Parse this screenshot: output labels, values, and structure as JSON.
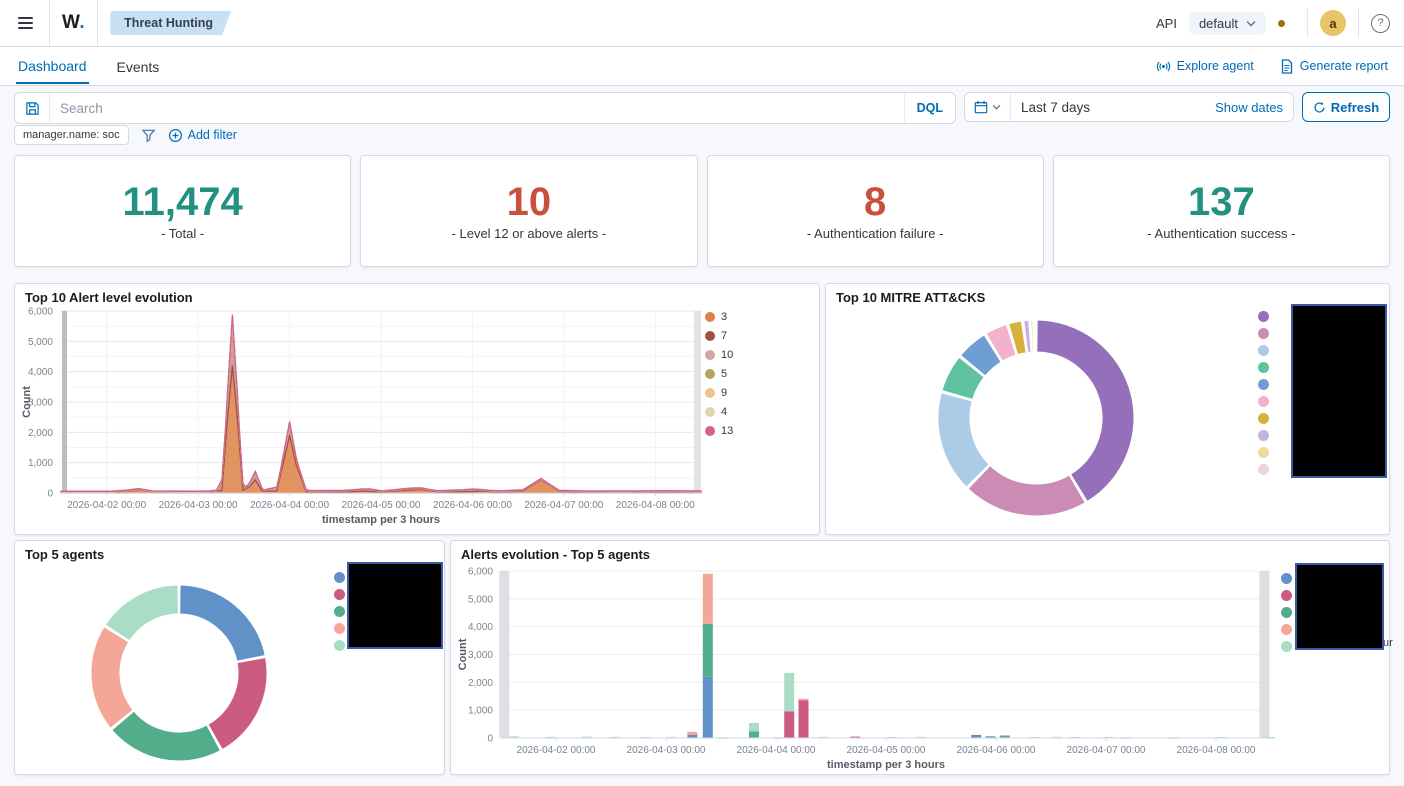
{
  "topbar": {
    "logo": "W",
    "logo_dot": ".",
    "breadcrumb": "Threat Hunting",
    "api_label": "API",
    "api_selected": "default",
    "avatar_initial": "a",
    "help": "?"
  },
  "tabs": {
    "items": [
      {
        "label": "Dashboard",
        "active": true
      },
      {
        "label": "Events",
        "active": false
      }
    ],
    "actions": [
      {
        "label": "Explore agent"
      },
      {
        "label": "Generate report"
      }
    ]
  },
  "search": {
    "placeholder": "Search",
    "language": "DQL",
    "time_range": "Last 7 days",
    "show_dates_label": "Show dates",
    "refresh_label": "Refresh"
  },
  "filter_bar": {
    "pill": "manager.name: soc",
    "add_filter_label": "Add filter"
  },
  "stats": [
    {
      "value": "11,474",
      "label": "- Total -",
      "color": "#239182"
    },
    {
      "value": "10",
      "label": "- Level 12 or above alerts -",
      "color": "#c8503c"
    },
    {
      "value": "8",
      "label": "- Authentication failure -",
      "color": "#c8503c"
    },
    {
      "value": "137",
      "label": "- Authentication success -",
      "color": "#239182"
    }
  ],
  "chart_data": [
    {
      "type": "area",
      "title": "Top 10 Alert level evolution",
      "xlabel": "timestamp per 3 hours",
      "ylabel": "Count",
      "ylim": [
        0,
        6000
      ],
      "y_ticks": [
        "0",
        "1,000",
        "2,000",
        "3,000",
        "4,000",
        "5,000",
        "6,000"
      ],
      "x_range_days": [
        0,
        7
      ],
      "x_ticks": [
        {
          "t": 0.5,
          "label": "2026-04-02 00:00"
        },
        {
          "t": 1.5,
          "label": "2026-04-03 00:00"
        },
        {
          "t": 2.5,
          "label": "2026-04-04 00:00"
        },
        {
          "t": 3.5,
          "label": "2026-04-05 00:00"
        },
        {
          "t": 4.5,
          "label": "2026-04-06 00:00"
        },
        {
          "t": 5.5,
          "label": "2026-04-07 00:00"
        },
        {
          "t": 6.5,
          "label": "2026-04-08 00:00"
        }
      ],
      "legend": [
        {
          "label": "3",
          "color": "#dd8047"
        },
        {
          "label": "7",
          "color": "#a24f42"
        },
        {
          "label": "10",
          "color": "#d2a5a2"
        },
        {
          "label": "5",
          "color": "#b3a369"
        },
        {
          "label": "9",
          "color": "#eec48c"
        },
        {
          "label": "4",
          "color": "#ded5b6"
        },
        {
          "label": "13",
          "color": "#d4618c"
        }
      ],
      "series": [
        {
          "name": "3",
          "color": "#dd8047",
          "opacity": 0.85,
          "points": [
            [
              0,
              25
            ],
            [
              0.55,
              25
            ],
            [
              0.72,
              60
            ],
            [
              0.85,
              110
            ],
            [
              1.0,
              35
            ],
            [
              1.45,
              25
            ],
            [
              1.62,
              30
            ],
            [
              1.76,
              80
            ],
            [
              1.82,
              2400
            ],
            [
              1.875,
              4200
            ],
            [
              1.93,
              2400
            ],
            [
              1.99,
              90
            ],
            [
              2.06,
              200
            ],
            [
              2.125,
              430
            ],
            [
              2.2,
              60
            ],
            [
              2.36,
              60
            ],
            [
              2.44,
              1100
            ],
            [
              2.5,
              1900
            ],
            [
              2.57,
              950
            ],
            [
              2.68,
              40
            ],
            [
              3.1,
              30
            ],
            [
              3.3,
              60
            ],
            [
              3.5,
              30
            ],
            [
              3.78,
              90
            ],
            [
              3.95,
              120
            ],
            [
              4.12,
              30
            ],
            [
              4.4,
              40
            ],
            [
              4.62,
              60
            ],
            [
              4.82,
              30
            ],
            [
              5.05,
              60
            ],
            [
              5.25,
              430
            ],
            [
              5.45,
              50
            ],
            [
              5.72,
              30
            ],
            [
              6.2,
              30
            ],
            [
              6.6,
              40
            ],
            [
              7,
              30
            ]
          ]
        },
        {
          "name": "7",
          "color": "#a24f42",
          "opacity": 0.55,
          "points": [
            [
              0,
              12
            ],
            [
              1.7,
              12
            ],
            [
              1.8,
              550
            ],
            [
              1.875,
              1650
            ],
            [
              1.95,
              480
            ],
            [
              2.02,
              30
            ],
            [
              2.07,
              120
            ],
            [
              2.125,
              260
            ],
            [
              2.22,
              20
            ],
            [
              2.4,
              140
            ],
            [
              2.5,
              430
            ],
            [
              2.6,
              140
            ],
            [
              2.72,
              15
            ],
            [
              3.2,
              40
            ],
            [
              3.38,
              60
            ],
            [
              3.52,
              15
            ],
            [
              3.85,
              40
            ],
            [
              4.02,
              15
            ],
            [
              4.5,
              55
            ],
            [
              4.68,
              15
            ],
            [
              5.22,
              25
            ],
            [
              5.35,
              15
            ],
            [
              7,
              12
            ]
          ]
        },
        {
          "name": "10",
          "color": "#d2a5a2",
          "opacity": 0.8,
          "points": [
            [
              0,
              4
            ],
            [
              7,
              4
            ]
          ]
        },
        {
          "name": "5",
          "color": "#b3a369",
          "opacity": 0.8,
          "points": [
            [
              0,
              3
            ],
            [
              7,
              3
            ]
          ]
        },
        {
          "name": "9",
          "color": "#eec48c",
          "opacity": 0.8,
          "points": [
            [
              0,
              3
            ],
            [
              7,
              3
            ]
          ]
        },
        {
          "name": "4",
          "color": "#ded5b6",
          "opacity": 0.8,
          "points": [
            [
              0,
              3
            ],
            [
              7,
              3
            ]
          ]
        },
        {
          "name": "13",
          "color": "#d4618c",
          "opacity": 0.9,
          "points": [
            [
              0,
              14
            ],
            [
              7,
              14
            ]
          ]
        }
      ]
    },
    {
      "type": "donut",
      "title": "Top 10 MITRE ATT&CKS",
      "values": [
        41.5,
        21,
        17,
        6.5,
        5.5,
        4,
        2.5,
        1.2,
        0.6,
        0.4
      ],
      "colors": [
        "#9470bb",
        "#ca8cb5",
        "#abcbe6",
        "#5ec39e",
        "#6f9fd2",
        "#f2b2cc",
        "#d4b23c",
        "#c5b2e2",
        "#e9dc9c",
        "#eed2df"
      ],
      "legend_redacted": true
    },
    {
      "type": "donut",
      "title": "Top 5 agents",
      "values": [
        22,
        20,
        22,
        20,
        16
      ],
      "colors": [
        "#6092c8",
        "#cb5b80",
        "#52ad8b",
        "#f4a797",
        "#abdcc6"
      ],
      "legend_redacted": true
    },
    {
      "type": "stacked_bar",
      "title": "Alerts evolution - Top 5 agents",
      "xlabel": "timestamp per 3 hours",
      "ylabel": "Count",
      "ylim": [
        0,
        6000
      ],
      "y_ticks": [
        "0",
        "1,000",
        "2,000",
        "3,000",
        "4,000",
        "5,000",
        "6,000"
      ],
      "x_range_days": [
        0,
        7
      ],
      "x_ticks": [
        {
          "t": 0.5,
          "label": "2026-04-02 00:00"
        },
        {
          "t": 1.5,
          "label": "2026-04-03 00:00"
        },
        {
          "t": 2.5,
          "label": "2026-04-04 00:00"
        },
        {
          "t": 3.5,
          "label": "2026-04-05 00:00"
        },
        {
          "t": 4.5,
          "label": "2026-04-06 00:00"
        },
        {
          "t": 5.5,
          "label": "2026-04-07 00:00"
        },
        {
          "t": 6.5,
          "label": "2026-04-08 00:00"
        }
      ],
      "series_colors": {
        "b": "#6092c8",
        "c": "#cb5b80",
        "g": "#52ad8b",
        "s": "#f4a797",
        "m": "#abdcc6",
        "x": "#dcdfe3"
      },
      "legend_colors": [
        "#6092c8",
        "#cb5b80",
        "#52ad8b",
        "#f4a797",
        "#abdcc6"
      ],
      "legend_redacted": true,
      "legend_overflow_text": "ur",
      "bars": [
        {
          "t": 0.03,
          "parts": [
            [
              "x",
              6000
            ]
          ]
        },
        {
          "t": 0.12,
          "parts": [
            [
              "m",
              60
            ]
          ]
        },
        {
          "t": 0.45,
          "parts": [
            [
              "m",
              40
            ]
          ]
        },
        {
          "t": 0.78,
          "parts": [
            [
              "m",
              50
            ]
          ]
        },
        {
          "t": 1.03,
          "parts": [
            [
              "m",
              40
            ]
          ]
        },
        {
          "t": 1.32,
          "parts": [
            [
              "m",
              35
            ]
          ]
        },
        {
          "t": 1.55,
          "parts": [
            [
              "m",
              40
            ]
          ]
        },
        {
          "t": 1.74,
          "parts": [
            [
              "b",
              110
            ],
            [
              "s",
              110
            ]
          ]
        },
        {
          "t": 1.88,
          "parts": [
            [
              "b",
              2200
            ],
            [
              "g",
              1900
            ],
            [
              "s",
              1800
            ]
          ]
        },
        {
          "t": 2.02,
          "parts": [
            [
              "m",
              30
            ]
          ]
        },
        {
          "t": 2.3,
          "parts": [
            [
              "g",
              240
            ],
            [
              "m",
              300
            ]
          ]
        },
        {
          "t": 2.52,
          "parts": [
            [
              "m",
              30
            ]
          ]
        },
        {
          "t": 2.62,
          "parts": [
            [
              "c",
              960
            ],
            [
              "m",
              1380
            ]
          ]
        },
        {
          "t": 2.75,
          "parts": [
            [
              "c",
              1350
            ],
            [
              "s",
              60
            ]
          ]
        },
        {
          "t": 2.93,
          "parts": [
            [
              "m",
              40
            ]
          ]
        },
        {
          "t": 3.22,
          "parts": [
            [
              "c",
              50
            ]
          ]
        },
        {
          "t": 3.55,
          "parts": [
            [
              "m",
              35
            ]
          ]
        },
        {
          "t": 3.82,
          "parts": [
            [
              "m",
              40
            ]
          ]
        },
        {
          "t": 4.32,
          "parts": [
            [
              "b",
              110
            ]
          ]
        },
        {
          "t": 4.45,
          "parts": [
            [
              "b",
              60
            ]
          ]
        },
        {
          "t": 4.58,
          "parts": [
            [
              "g",
              90
            ]
          ]
        },
        {
          "t": 4.85,
          "parts": [
            [
              "m",
              35
            ]
          ]
        },
        {
          "t": 5.05,
          "parts": [
            [
              "m",
              40
            ]
          ]
        },
        {
          "t": 5.22,
          "parts": [
            [
              "m",
              35
            ]
          ]
        },
        {
          "t": 5.52,
          "parts": [
            [
              "m",
              40
            ]
          ]
        },
        {
          "t": 5.68,
          "parts": [
            [
              "m",
              30
            ]
          ]
        },
        {
          "t": 6.12,
          "parts": [
            [
              "m",
              30
            ]
          ]
        },
        {
          "t": 6.55,
          "parts": [
            [
              "m",
              35
            ]
          ]
        },
        {
          "t": 6.94,
          "parts": [
            [
              "x",
              6000
            ]
          ]
        },
        {
          "t": 6.99,
          "parts": [
            [
              "m",
              40
            ]
          ]
        }
      ]
    }
  ]
}
